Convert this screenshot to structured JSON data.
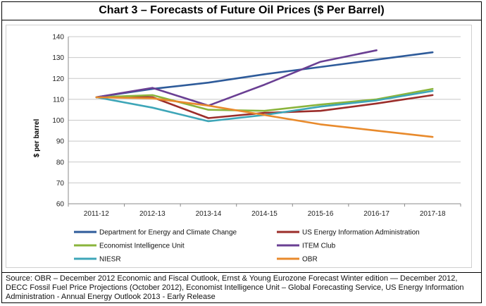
{
  "header": {
    "title": "Chart 3 – Forecasts of Future Oil Prices ($ Per Barrel)"
  },
  "footer": {
    "source": "Source: OBR – December 2012 Economic and Fiscal Outlook, Ernst & Young Eurozone Forecast Winter edition — December 2012, DECC Fossil Fuel Price Projections (October 2012), Economist Intelligence Unit – Global Forecasting Service, US Energy Information Administration - Annual Energy Outlook 2013 - Early Release"
  },
  "chart_data": {
    "type": "line",
    "title": "Chart 3 – Forecasts of Future Oil Prices ($ Per Barrel)",
    "xlabel": "",
    "ylabel": "$ per barrel",
    "categories": [
      "2011-12",
      "2012-13",
      "2013-14",
      "2014-15",
      "2015-16",
      "2016-17",
      "2017-18"
    ],
    "ylim": [
      60,
      140
    ],
    "yticks": [
      60,
      70,
      80,
      90,
      100,
      110,
      120,
      130,
      140
    ],
    "grid": "horizontal",
    "legend_position": "bottom",
    "series": [
      {
        "name": "Department for Energy and Climate Change",
        "color": "#2e5b9a",
        "values": [
          111,
          115,
          118,
          122,
          125.5,
          129,
          132.5
        ]
      },
      {
        "name": "US Energy Information Administration",
        "color": "#9b2d2a",
        "values": [
          111,
          111,
          101,
          103.5,
          104.5,
          108,
          112
        ]
      },
      {
        "name": "Economist Intelligence Unit",
        "color": "#8ab43c",
        "values": [
          111,
          112,
          105,
          104.5,
          107.5,
          110,
          115
        ]
      },
      {
        "name": "ITEM Club",
        "color": "#6a3f93",
        "values": [
          111,
          115.5,
          107,
          117,
          128,
          133.5,
          null
        ]
      },
      {
        "name": "NIESR",
        "color": "#3ea6b8",
        "values": [
          111,
          106,
          99.5,
          102.5,
          106.5,
          109.5,
          114
        ]
      },
      {
        "name": "OBR",
        "color": "#e88a2c",
        "values": [
          111,
          110.5,
          107,
          102.5,
          98,
          95,
          92
        ]
      }
    ]
  }
}
